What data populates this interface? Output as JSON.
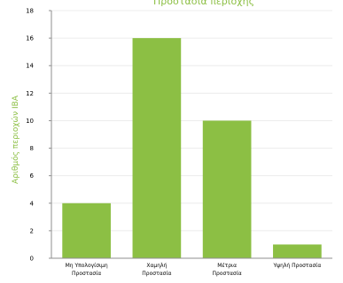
{
  "chart_data": {
    "type": "bar",
    "title": "Προστασία περιοχής",
    "ylabel": "Αριθμός περιοχών IBA",
    "xlabel": "",
    "categories": [
      [
        "Μη Υπολογίσιμη",
        "Προστασία"
      ],
      [
        "Χαμηλή",
        "Προστασία"
      ],
      [
        "Μέτρια",
        "Προστασία"
      ],
      [
        "Υψηλή Προστασία"
      ]
    ],
    "values": [
      4,
      16,
      10,
      1
    ],
    "ylim": [
      0,
      18
    ],
    "yticks": [
      0,
      2,
      4,
      6,
      8,
      10,
      12,
      14,
      16,
      18
    ],
    "grid": true,
    "legend": "none",
    "bar_color": "#8cbf44"
  }
}
